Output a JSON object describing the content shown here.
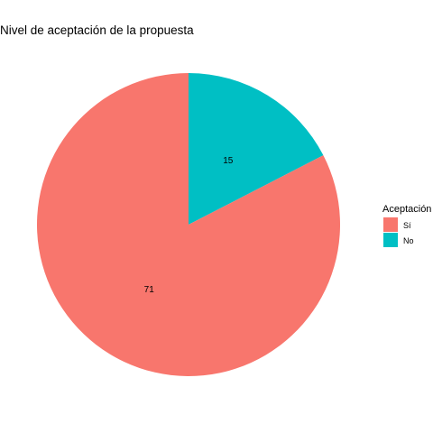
{
  "chart_data": {
    "type": "pie",
    "title": "Nivel de aceptación de la propuesta",
    "legend_title": "Aceptación",
    "legend_position": "right",
    "categories": [
      "Sí",
      "No"
    ],
    "values": [
      71,
      15
    ],
    "colors": [
      "#F8766D",
      "#00BFC4"
    ],
    "data_labels": [
      "71",
      "15"
    ],
    "grid": false
  }
}
